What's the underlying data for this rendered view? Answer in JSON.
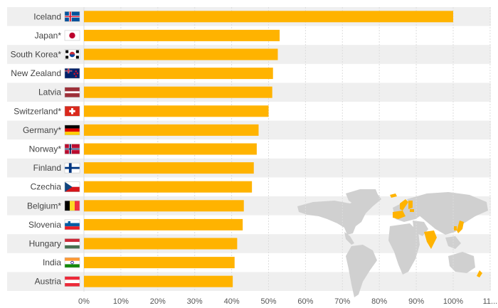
{
  "chart_data": {
    "type": "bar",
    "orientation": "horizontal",
    "categories": [
      "Iceland",
      "Japan*",
      "South Korea*",
      "New Zealand",
      "Latvia",
      "Switzerland*",
      "Germany*",
      "Norway*",
      "Finland",
      "Czechia",
      "Belgium*",
      "Slovenia",
      "Hungary",
      "India",
      "Austria"
    ],
    "values": [
      100,
      53,
      52.5,
      51.2,
      51,
      50,
      47.3,
      46.8,
      46,
      45.5,
      43.3,
      43,
      41.5,
      40.8,
      40.3
    ],
    "xlim": [
      0,
      110
    ],
    "tick_labels": [
      "0%",
      "10%",
      "20%",
      "30%",
      "40%",
      "50%",
      "60%",
      "70%",
      "80%",
      "90%",
      "100%",
      "11..."
    ],
    "bar_color": "#FFB300",
    "grid": true,
    "legend": "none"
  }
}
